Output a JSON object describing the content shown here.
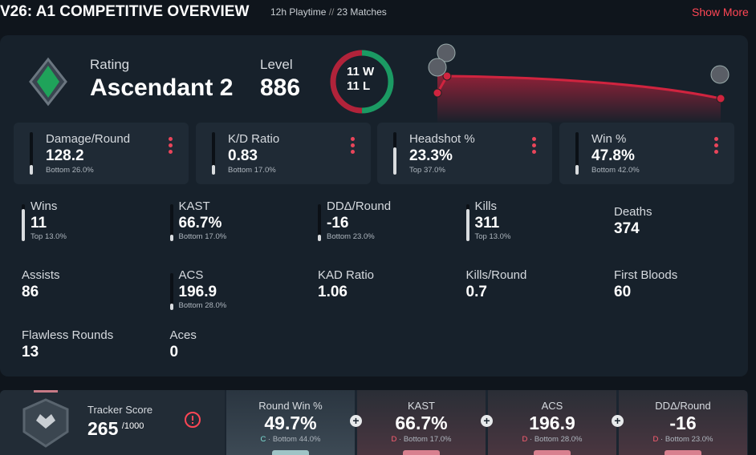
{
  "header": {
    "title": "V26: A1 COMPETITIVE OVERVIEW",
    "playtime": "12h Playtime",
    "separator": "//",
    "matches": "23 Matches",
    "show_more": "Show More"
  },
  "profile": {
    "rating_label": "Rating",
    "rating": "Ascendant 2",
    "level_label": "Level",
    "level": "886"
  },
  "record": {
    "wins": 11,
    "win_suffix": "W",
    "losses": 11,
    "loss_suffix": "L"
  },
  "cards": [
    {
      "label": "Damage/Round",
      "value": "128.2",
      "rank": "Bottom 26.0%"
    },
    {
      "label": "K/D Ratio",
      "value": "0.83",
      "rank": "Bottom 17.0%"
    },
    {
      "label": "Headshot %",
      "value": "23.3%",
      "rank": "Top 37.0%"
    },
    {
      "label": "Win %",
      "value": "47.8%",
      "rank": "Bottom 42.0%"
    }
  ],
  "stats": [
    {
      "label": "Wins",
      "value": "11",
      "rank": "Top 13.0%"
    },
    {
      "label": "KAST",
      "value": "66.7%",
      "rank": "Bottom 17.0%"
    },
    {
      "label": "DDΔ/Round",
      "value": "-16",
      "rank": "Bottom 23.0%"
    },
    {
      "label": "Kills",
      "value": "311",
      "rank": "Top 13.0%"
    },
    {
      "label": "Deaths",
      "value": "374"
    },
    {
      "label": "Assists",
      "value": "86"
    },
    {
      "label": "ACS",
      "value": "196.9",
      "rank": "Bottom 28.0%"
    },
    {
      "label": "KAD Ratio",
      "value": "1.06"
    },
    {
      "label": "Kills/Round",
      "value": "0.7"
    },
    {
      "label": "First Bloods",
      "value": "60"
    },
    {
      "label": "Flawless Rounds",
      "value": "13"
    },
    {
      "label": "Aces",
      "value": "0"
    }
  ],
  "tracker": {
    "label": "Tracker Score",
    "score": "265",
    "max": "/1000"
  },
  "summary": {
    "separator": "·",
    "items": [
      {
        "label": "Round Win %",
        "value": "49.7%",
        "grade": "C",
        "rank": "Bottom 44.0%"
      },
      {
        "label": "KAST",
        "value": "66.7%",
        "grade": "D",
        "rank": "Bottom 17.0%"
      },
      {
        "label": "ACS",
        "value": "196.9",
        "grade": "D",
        "rank": "Bottom 28.0%"
      },
      {
        "label": "DDΔ/Round",
        "value": "-16",
        "grade": "D",
        "rank": "Bottom 23.0%"
      }
    ]
  }
}
